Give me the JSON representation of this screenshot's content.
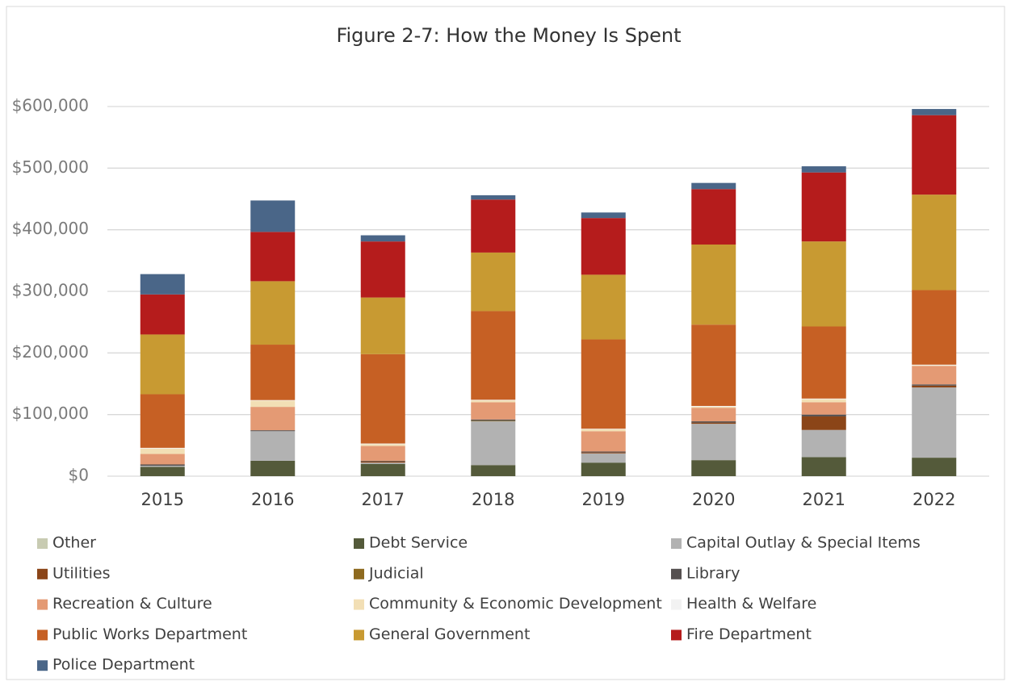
{
  "chart_data": {
    "type": "stacked_bar",
    "title": "Figure 2-7: How the Money Is Spent",
    "categories": [
      "2015",
      "2016",
      "2017",
      "2018",
      "2019",
      "2020",
      "2021",
      "2022"
    ],
    "series": [
      {
        "name": "Other",
        "color": "#c8cbb2",
        "values": [
          0,
          0,
          0,
          0,
          0,
          0,
          0,
          0
        ]
      },
      {
        "name": "Debt Service",
        "color": "#545a3a",
        "values": [
          15000,
          25000,
          20000,
          18000,
          22000,
          26000,
          31000,
          30000
        ]
      },
      {
        "name": "Capital Outlay & Special Items",
        "color": "#b2b2b2",
        "values": [
          2000,
          48000,
          2000,
          71000,
          15000,
          59000,
          44000,
          114000
        ]
      },
      {
        "name": "Utilities",
        "color": "#8b4518",
        "values": [
          0,
          0,
          2000,
          0,
          1500,
          2000,
          22000,
          3000
        ]
      },
      {
        "name": "Judicial",
        "color": "#8e6a1f",
        "values": [
          0,
          0,
          0,
          1000,
          0,
          0,
          0,
          0
        ]
      },
      {
        "name": "Library",
        "color": "#555050",
        "values": [
          2000,
          1500,
          1000,
          2000,
          1500,
          2000,
          3000,
          2000
        ]
      },
      {
        "name": "Recreation & Culture",
        "color": "#e49a74",
        "values": [
          17000,
          38000,
          24000,
          28000,
          33000,
          22000,
          20000,
          30000
        ]
      },
      {
        "name": "Community & Economic Development",
        "color": "#f2dfb5",
        "values": [
          9000,
          10000,
          3000,
          3000,
          3000,
          2000,
          5000,
          1000
        ]
      },
      {
        "name": "Health & Welfare",
        "color": "#f2f2f2",
        "values": [
          1000,
          1000,
          1000,
          1000,
          1000,
          1000,
          1000,
          1000
        ]
      },
      {
        "name": "Public Works Department",
        "color": "#c66024",
        "values": [
          87000,
          90000,
          145000,
          144000,
          145000,
          132000,
          117000,
          121000
        ]
      },
      {
        "name": "General Government",
        "color": "#c89a32",
        "values": [
          97000,
          103000,
          92000,
          95000,
          105000,
          130000,
          138000,
          155000
        ]
      },
      {
        "name": "Fire Department",
        "color": "#b51c1c",
        "values": [
          65000,
          80000,
          91000,
          86000,
          92000,
          90000,
          112000,
          129000
        ]
      },
      {
        "name": "Police Department",
        "color": "#4a6688",
        "values": [
          33000,
          51000,
          10000,
          7000,
          9000,
          10000,
          10000,
          10000
        ]
      }
    ],
    "ylim": [
      0,
      600000
    ],
    "yticks": [
      {
        "value": 0,
        "label": "$0"
      },
      {
        "value": 100000,
        "label": "$100,000"
      },
      {
        "value": 200000,
        "label": "$200,000"
      },
      {
        "value": 300000,
        "label": "$300,000"
      },
      {
        "value": 400000,
        "label": "$400,000"
      },
      {
        "value": 500000,
        "label": "$500,000"
      },
      {
        "value": 600000,
        "label": "$600,000"
      }
    ],
    "grid": true,
    "legend": "bottom"
  }
}
